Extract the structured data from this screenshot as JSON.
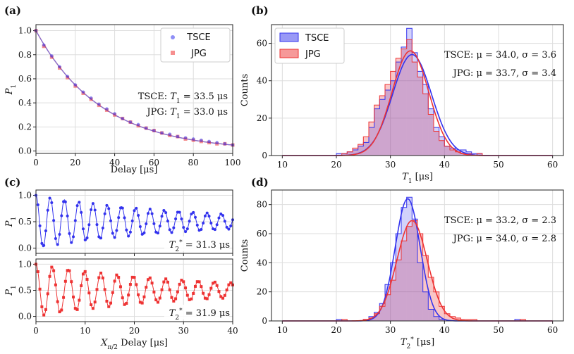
{
  "colors": {
    "tsce": "#3333ee",
    "jpg": "#ee3333",
    "overlap": "#cc99cc",
    "grid": "#dddddd"
  },
  "panels": {
    "a": {
      "label": "(a)"
    },
    "b": {
      "label": "(b)"
    },
    "c": {
      "label": "(c)"
    },
    "d": {
      "label": "(d)"
    }
  },
  "chart_data": [
    {
      "id": "a",
      "type": "scatter",
      "title": "",
      "xlabel": "Delay [μs]",
      "ylabel": "P1",
      "xlim": [
        0,
        100
      ],
      "ylim": [
        -0.02,
        1.05
      ],
      "xticks": [
        0,
        20,
        40,
        60,
        80,
        100
      ],
      "yticks": [
        0.0,
        0.2,
        0.4,
        0.6,
        0.8,
        1.0
      ],
      "ytick_labels": [
        "0.0",
        "0.2",
        "0.4",
        "0.6",
        "0.8",
        "1.0"
      ],
      "legend": {
        "placement": "top-right",
        "entries": [
          "TSCE",
          "JPG"
        ]
      },
      "series": [
        {
          "name": "TSCE",
          "marker": "circle",
          "x": [
            0,
            4,
            8,
            12,
            16,
            20,
            24,
            28,
            32,
            36,
            40,
            44,
            48,
            52,
            56,
            60,
            64,
            68,
            72,
            76,
            80,
            84,
            88,
            92,
            96,
            100
          ],
          "y": [
            1.0,
            0.88,
            0.79,
            0.7,
            0.62,
            0.55,
            0.49,
            0.44,
            0.39,
            0.35,
            0.31,
            0.27,
            0.24,
            0.22,
            0.19,
            0.17,
            0.15,
            0.14,
            0.12,
            0.11,
            0.1,
            0.09,
            0.08,
            0.07,
            0.06,
            0.05
          ]
        },
        {
          "name": "JPG",
          "marker": "square",
          "x": [
            0,
            4,
            8,
            12,
            16,
            20,
            24,
            28,
            32,
            36,
            40,
            44,
            48,
            52,
            56,
            60,
            64,
            68,
            72,
            76,
            80,
            84,
            88,
            92,
            96,
            100
          ],
          "y": [
            1.0,
            0.87,
            0.78,
            0.69,
            0.61,
            0.54,
            0.48,
            0.43,
            0.38,
            0.34,
            0.3,
            0.27,
            0.24,
            0.21,
            0.19,
            0.17,
            0.15,
            0.13,
            0.12,
            0.1,
            0.09,
            0.08,
            0.07,
            0.06,
            0.06,
            0.05
          ]
        }
      ],
      "annotations": [
        {
          "text": "TSCE: T1 = 33.5 μs",
          "prefix": "TSCE: ",
          "var": "T",
          "subscript": "1",
          "value": " = 33.5 μs"
        },
        {
          "text": "JPG: T1 = 33.0 μs",
          "prefix": "JPG: ",
          "var": "T",
          "subscript": "1",
          "value": " = 33.0 μs"
        }
      ]
    },
    {
      "id": "b",
      "type": "bar",
      "title": "",
      "xlabel": "T1 [μs]",
      "ylabel": "Counts",
      "xlim": [
        8,
        62
      ],
      "ylim": [
        0,
        70
      ],
      "xticks": [
        10,
        20,
        30,
        40,
        50,
        60
      ],
      "yticks": [
        0,
        20,
        40,
        60
      ],
      "legend": {
        "placement": "top-left",
        "entries": [
          "TSCE",
          "JPG"
        ]
      },
      "bin_width": 1,
      "series": [
        {
          "name": "TSCE",
          "bin_start": 20,
          "counts": [
            1,
            1,
            2,
            3,
            5,
            7,
            15,
            25,
            30,
            35,
            40,
            50,
            58,
            68,
            55,
            45,
            38,
            25,
            15,
            10,
            5,
            4,
            3,
            3,
            2,
            1,
            1
          ]
        },
        {
          "name": "JPG",
          "bin_start": 20,
          "counts": [
            0,
            1,
            2,
            4,
            6,
            10,
            18,
            27,
            32,
            38,
            45,
            52,
            57,
            62,
            50,
            42,
            33,
            22,
            13,
            8,
            5,
            3,
            2,
            1,
            1,
            0,
            1
          ]
        }
      ],
      "fits": [
        {
          "name": "TSCE",
          "mu": 34.0,
          "sigma": 3.6,
          "peak": 54
        },
        {
          "name": "JPG",
          "mu": 33.7,
          "sigma": 3.4,
          "peak": 56
        }
      ],
      "annotations": [
        {
          "text": "TSCE: μ = 34.0, σ = 3.6"
        },
        {
          "text": "JPG: μ = 33.7, σ = 3.4"
        }
      ]
    },
    {
      "id": "c-top",
      "type": "line",
      "title": "",
      "xlabel": "",
      "ylabel": "P1",
      "xlim": [
        0,
        40
      ],
      "ylim": [
        -0.1,
        1.1
      ],
      "yticks": [
        0.0,
        0.5,
        1.0
      ],
      "ytick_labels": [
        "0.0",
        "0.5",
        "1.0"
      ],
      "series": [
        {
          "name": "TSCE",
          "model": "damped_cosine",
          "T2": 31.3,
          "period": 2.9,
          "mean": 0.5,
          "amp": 0.5,
          "sample_step": 0.4
        }
      ],
      "annotations": [
        {
          "text": "T2* = 31.3 μs",
          "var": "T",
          "subscript": "2",
          "sup": "*",
          "value": " = 31.3 μs"
        }
      ]
    },
    {
      "id": "c-bottom",
      "type": "line",
      "title": "",
      "xlabel": "Xπ/2 Delay [μs]",
      "ylabel": "P1",
      "xlim": [
        0,
        40
      ],
      "ylim": [
        -0.1,
        1.1
      ],
      "xticks": [
        0,
        10,
        20,
        30,
        40
      ],
      "yticks": [
        0.0,
        0.5,
        1.0
      ],
      "ytick_labels": [
        "0.0",
        "0.5",
        "1.0"
      ],
      "series": [
        {
          "name": "JPG",
          "model": "damped_cosine",
          "T2": 31.9,
          "period": 3.3,
          "mean": 0.5,
          "amp": 0.5,
          "sample_step": 0.4
        }
      ],
      "annotations": [
        {
          "text": "T2* = 31.9 μs",
          "var": "T",
          "subscript": "2",
          "sup": "*",
          "value": " = 31.9 μs"
        }
      ]
    },
    {
      "id": "d",
      "type": "bar",
      "title": "",
      "xlabel": "T2* [μs]",
      "ylabel": "Counts",
      "xlim": [
        8,
        62
      ],
      "ylim": [
        0,
        90
      ],
      "xticks": [
        10,
        20,
        30,
        40,
        50,
        60
      ],
      "yticks": [
        0,
        20,
        40,
        60,
        80
      ],
      "bin_width": 1,
      "series": [
        {
          "name": "TSCE",
          "bin_start": 20,
          "counts": [
            1,
            0,
            0,
            0,
            0,
            1,
            3,
            6,
            12,
            25,
            40,
            60,
            78,
            85,
            70,
            40,
            20,
            8,
            3,
            1,
            0,
            0,
            0,
            0,
            0,
            0,
            0,
            0,
            0,
            0,
            0,
            0,
            0,
            1
          ]
        },
        {
          "name": "JPG",
          "bin_start": 20,
          "counts": [
            0,
            1,
            0,
            0,
            0,
            1,
            2,
            5,
            10,
            18,
            28,
            42,
            55,
            65,
            69,
            60,
            45,
            30,
            20,
            10,
            5,
            3,
            2,
            1,
            1,
            1,
            0,
            0,
            0,
            0,
            0,
            0,
            0,
            0,
            1
          ]
        }
      ],
      "fits": [
        {
          "name": "TSCE",
          "mu": 33.2,
          "sigma": 2.3,
          "peak": 84
        },
        {
          "name": "JPG",
          "mu": 34.0,
          "sigma": 2.8,
          "peak": 69
        }
      ],
      "annotations": [
        {
          "text": "TSCE: μ = 33.2, σ = 2.3"
        },
        {
          "text": "JPG: μ = 34.0, σ = 2.8"
        }
      ]
    }
  ]
}
